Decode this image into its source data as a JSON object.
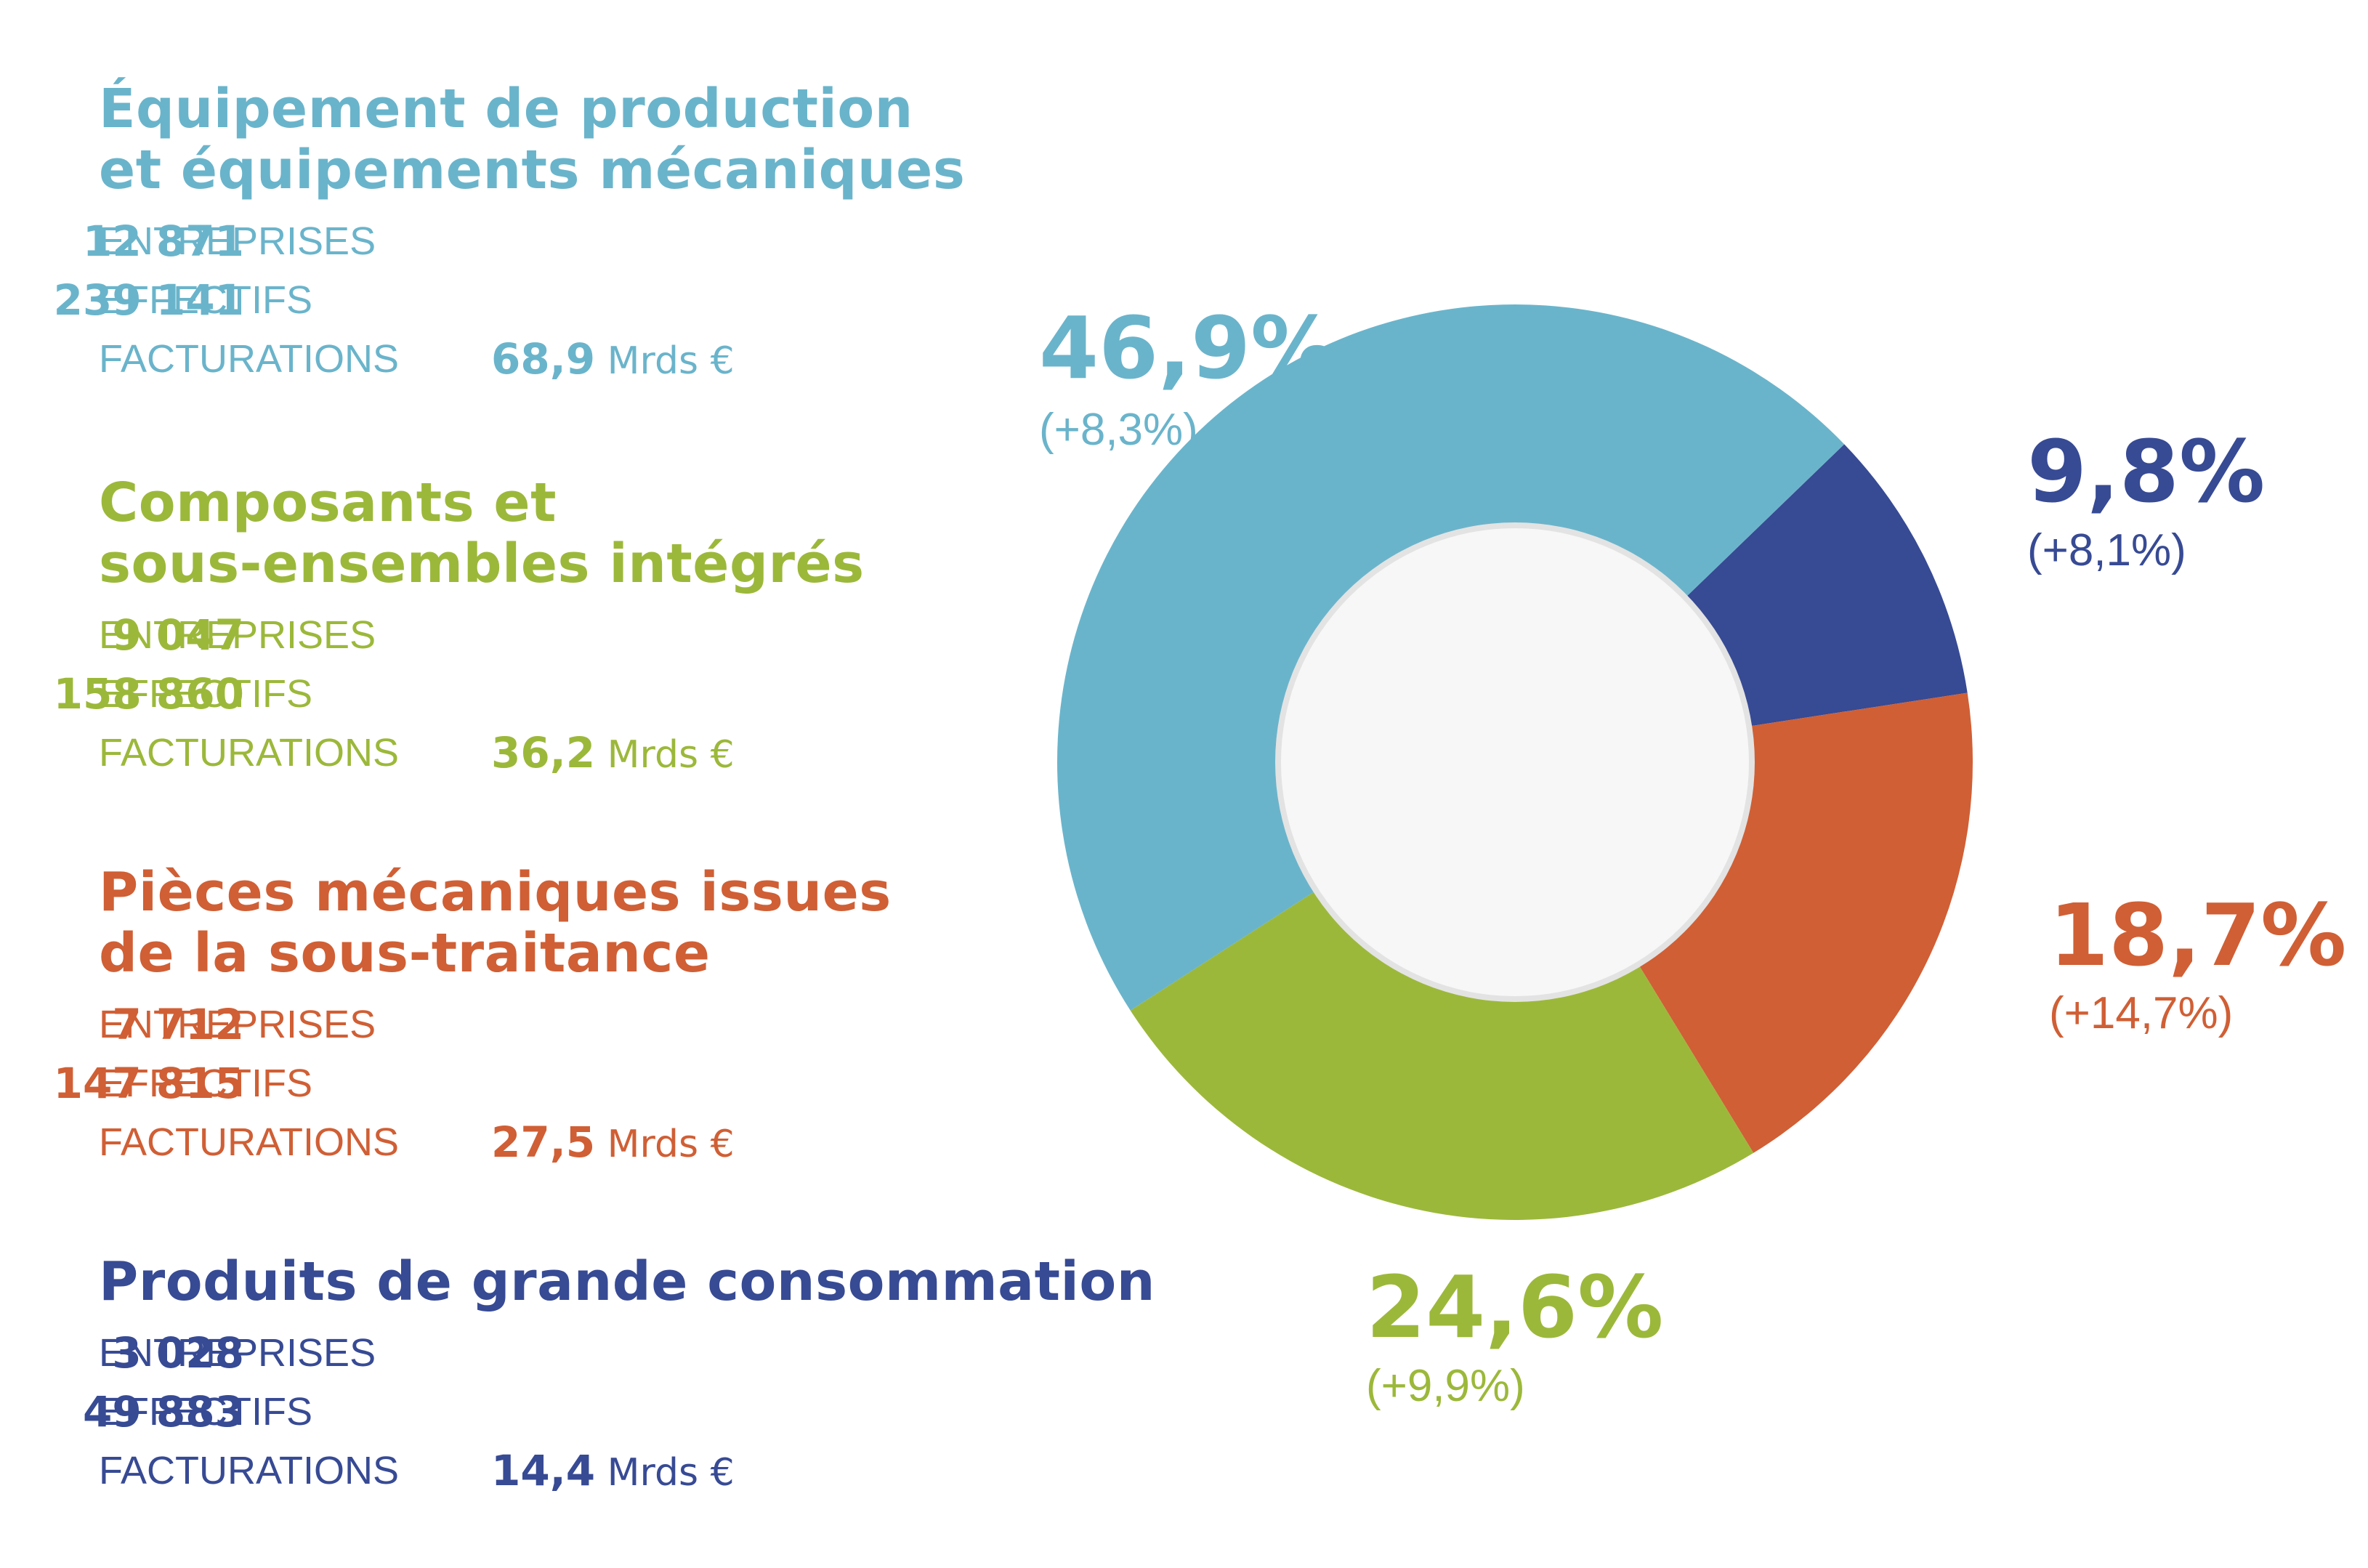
{
  "colors": {
    "equipement": "#6ab4cb",
    "composants": "#9cb83a",
    "pieces": "#d05f35",
    "produits": "#374a94"
  },
  "categories": [
    {
      "key": "equipement",
      "title_line1": "Équipement de production",
      "title_line2": "et équipements mécaniques",
      "entreprises_label": "ENTREPRISES",
      "entreprises": "12 871",
      "effectifs_label": "EFFECTIFS",
      "effectifs": "239 141",
      "facturations_label": "FACTURATIONS",
      "facturations": "68,9",
      "facturations_unit": "Mrds €"
    },
    {
      "key": "composants",
      "title_line1": "Composants et",
      "title_line2": "sous-ensembles intégrés",
      "entreprises_label": "ENTREPRISES",
      "entreprises": "9 047",
      "effectifs_label": "EFFECTIFS",
      "effectifs": "158 860",
      "facturations_label": "FACTURATIONS",
      "facturations": "36,2",
      "facturations_unit": "Mrds €"
    },
    {
      "key": "pieces",
      "title_line1": "Pièces mécaniques issues",
      "title_line2": "de la sous-traitance",
      "entreprises_label": "ENTREPRISES",
      "entreprises": "7 712",
      "effectifs_label": "EFFECTIFS",
      "effectifs": "147 815",
      "facturations_label": "FACTURATIONS",
      "facturations": "27,5",
      "facturations_unit": "Mrds €"
    },
    {
      "key": "produits",
      "title_line1": "Produits de grande consommation",
      "title_line2": "",
      "entreprises_label": "ENTREPRISES",
      "entreprises": "3 028",
      "effectifs_label": "EFFECTIFS",
      "effectifs": "49 883",
      "facturations_label": "FACTURATIONS",
      "facturations": "14,4",
      "facturations_unit": "Mrds €"
    }
  ],
  "chart_data": {
    "type": "pie",
    "style": "donut",
    "series": [
      {
        "key": "equipement",
        "value": 46.9,
        "label": "46,9%",
        "change": "(+8,3%)"
      },
      {
        "key": "produits",
        "value": 9.8,
        "label": "9,8%",
        "change": "(+8,1%)"
      },
      {
        "key": "pieces",
        "value": 18.7,
        "label": "18,7%",
        "change": "(+14,7%)"
      },
      {
        "key": "composants",
        "value": 24.6,
        "label": "24,6%",
        "change": "(+9,9%)"
      }
    ]
  }
}
